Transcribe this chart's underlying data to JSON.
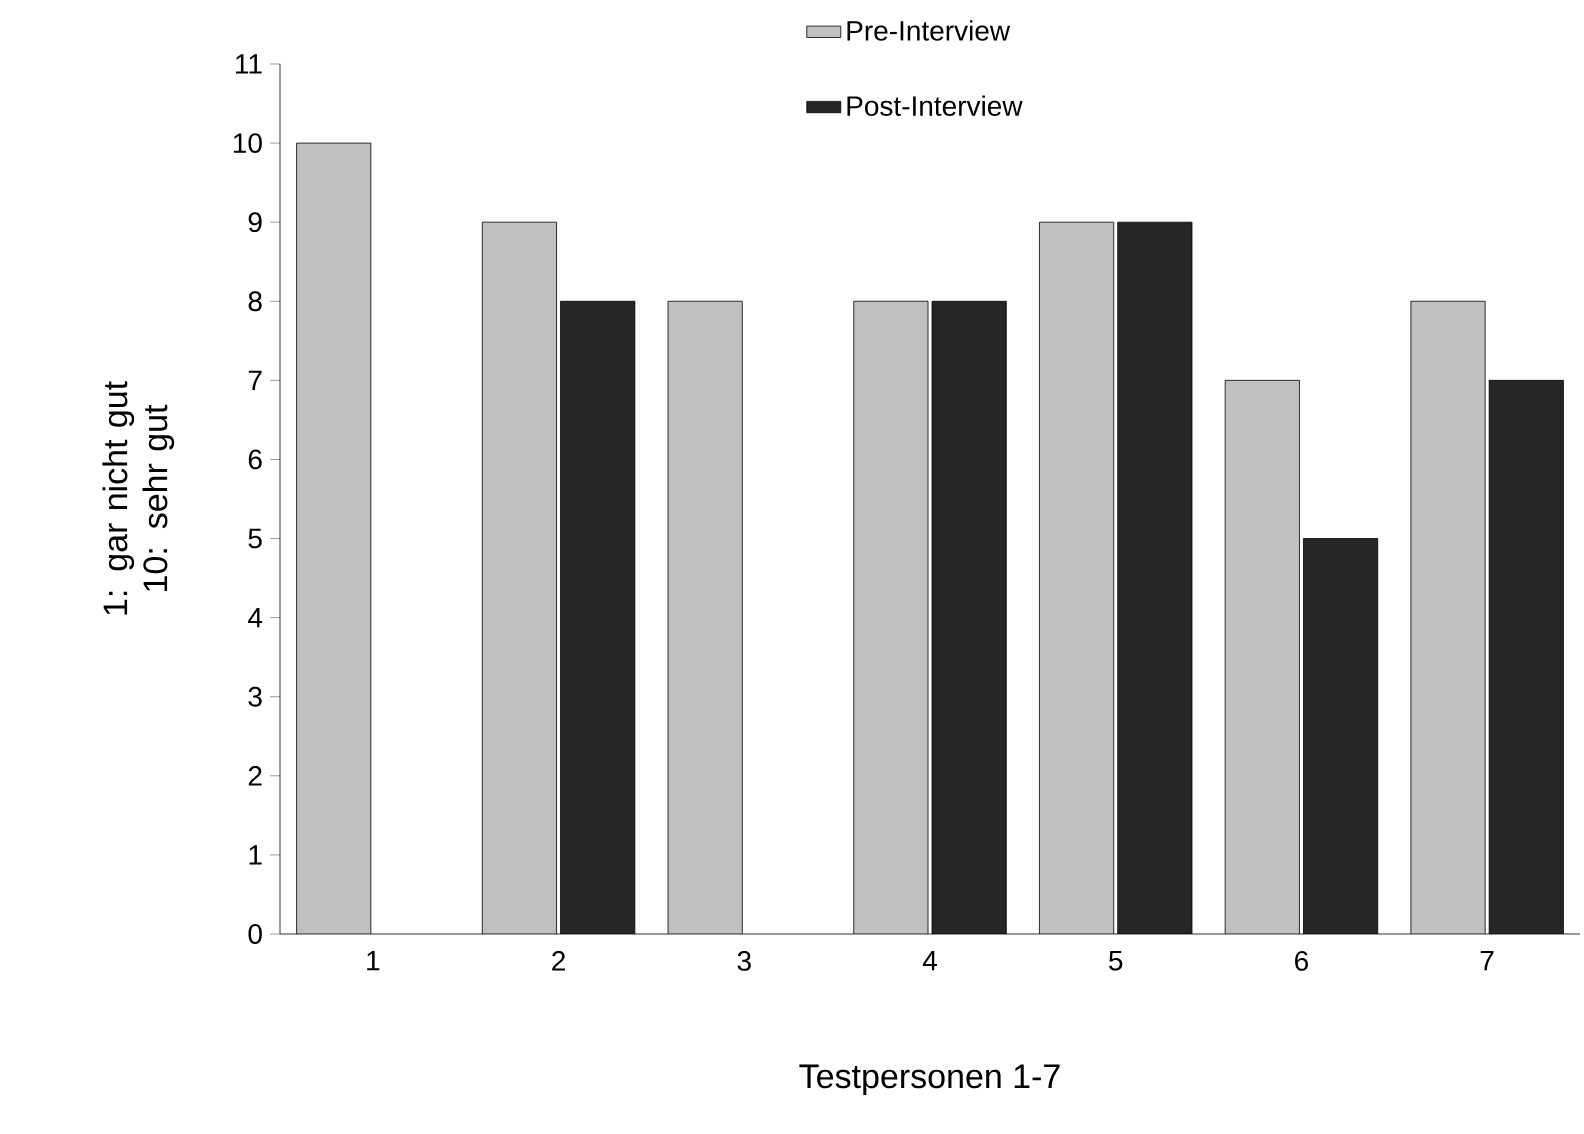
{
  "chart_data": {
    "type": "bar",
    "xlabel": "Testpersonen 1-7",
    "ylabel": "1: gar nicht gut 10: sehr gut",
    "categories": [
      "1",
      "2",
      "3",
      "4",
      "5",
      "6",
      "7"
    ],
    "series": [
      {
        "name": "Pre-Interview",
        "color": "#c0c0c0",
        "values": [
          10,
          9,
          8,
          8,
          9,
          7,
          8
        ]
      },
      {
        "name": "Post-Interview",
        "color": "#262626",
        "values": [
          null,
          8,
          null,
          8,
          9,
          5,
          7
        ]
      }
    ],
    "ylim": [
      0,
      11
    ],
    "yticks": [
      0,
      1,
      2,
      3,
      4,
      5,
      6,
      7,
      8,
      9,
      10,
      11
    ],
    "grid": false,
    "legend": "top"
  }
}
